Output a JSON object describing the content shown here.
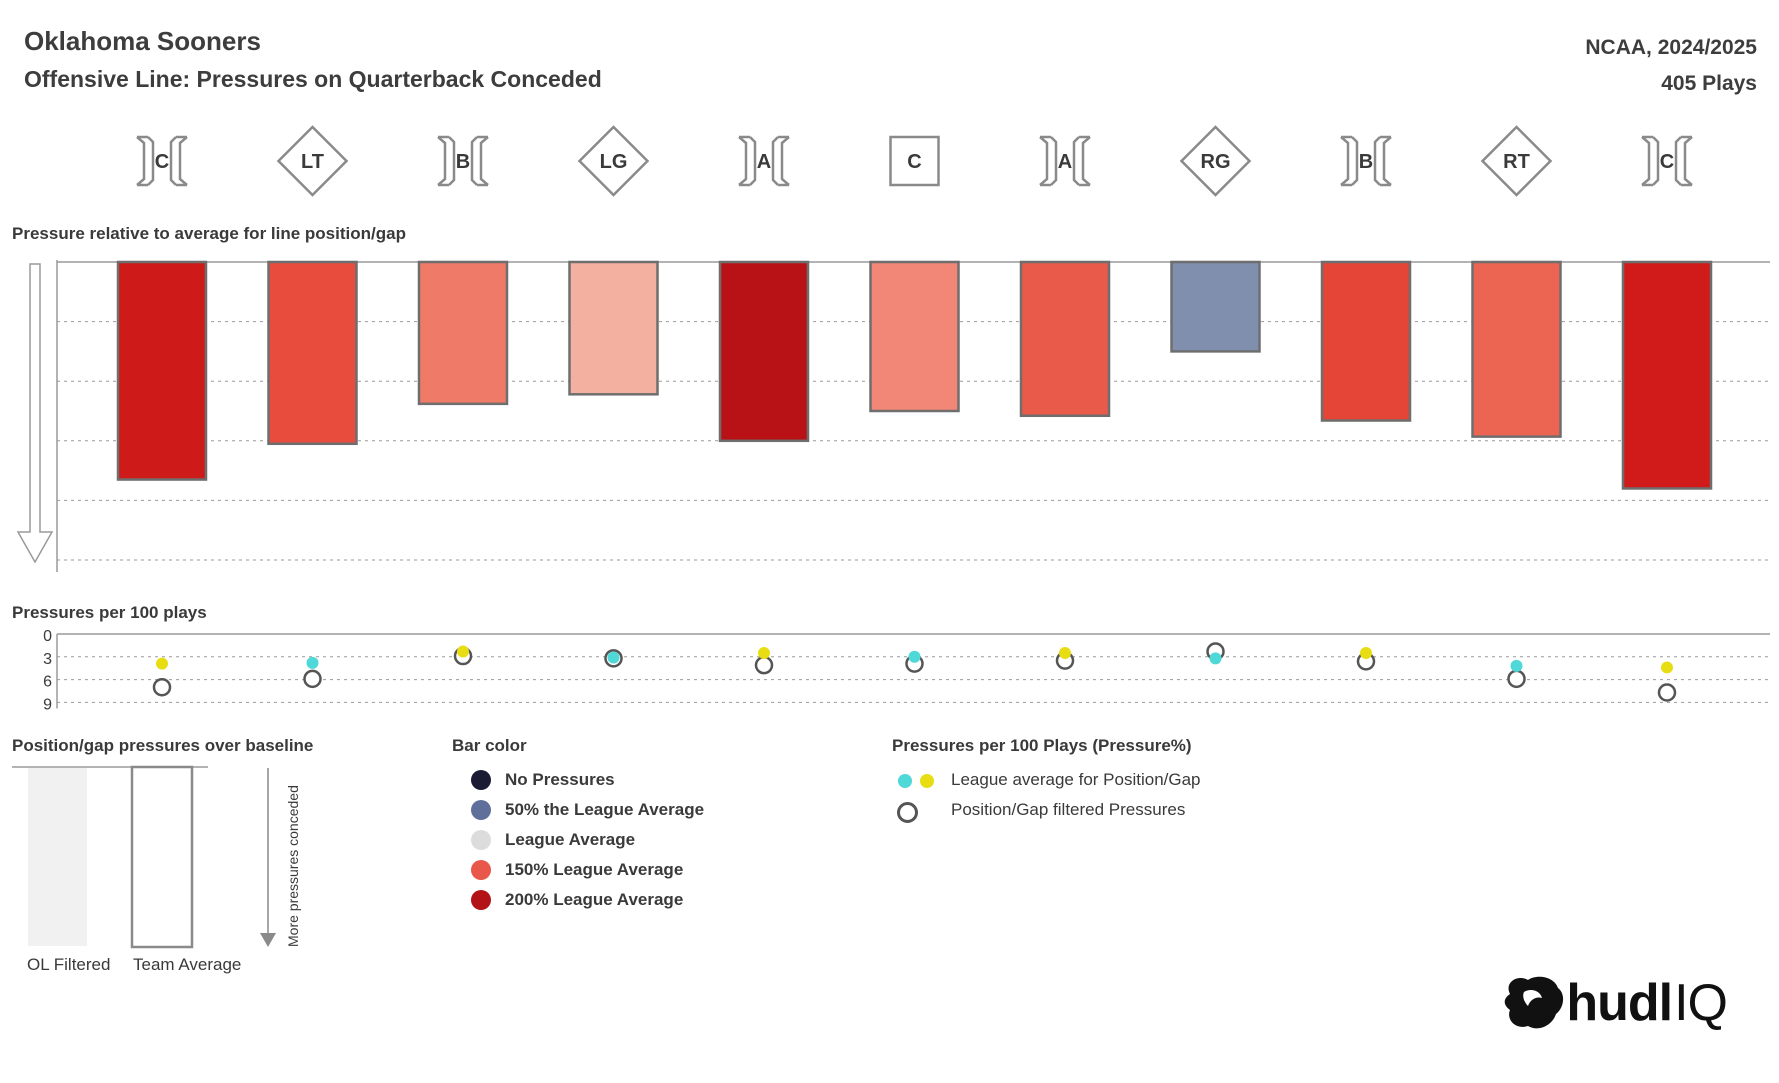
{
  "header": {
    "title": "Oklahoma Sooners",
    "subtitle": "Offensive Line: Pressures on Quarterback Conceded",
    "league_season": "NCAA, 2024/2025",
    "plays": "405 Plays"
  },
  "sections": {
    "bars_label": "Pressure relative to average for line position/gap",
    "dots_label": "Pressures per 100 plays",
    "baseline_label": "Position/gap pressures over baseline",
    "bar_color_label": "Bar color",
    "pressure_legend_label": "Pressures per 100 Plays (Pressure%)"
  },
  "baseline_legend": {
    "ol_filtered": "OL Filtered",
    "team_average": "Team Average",
    "arrow_label": "More pressures conceded"
  },
  "bar_color_legend": [
    {
      "label": "No Pressures",
      "color": "#1b1b33"
    },
    {
      "label": "50% the League Average",
      "color": "#5e6f99"
    },
    {
      "label": "League Average",
      "color": "#dcdcdc"
    },
    {
      "label": "150% League Average",
      "color": "#e8574a"
    },
    {
      "label": "200% League Average",
      "color": "#b31217"
    }
  ],
  "pressure_legend": {
    "league_avg_label": "League average for Position/Gap",
    "filtered_label": "Position/Gap filtered Pressures",
    "teal": "#4fd8d8",
    "yellow": "#e8dd12"
  },
  "logo": {
    "text": "hudl",
    "suffix": "IQ"
  },
  "chart_data": [
    {
      "type": "bar",
      "title": "Pressure relative to average for line position/gap",
      "categories": [
        "C",
        "LT",
        "B",
        "LG",
        "A",
        "C",
        "A",
        "RG",
        "B",
        "RT",
        "C"
      ],
      "category_kinds": [
        "gap",
        "player",
        "gap",
        "player",
        "gap",
        "center",
        "gap",
        "player",
        "gap",
        "player",
        "gap"
      ],
      "values": [
        3.65,
        3.05,
        2.38,
        2.22,
        3.0,
        2.5,
        2.58,
        1.5,
        2.66,
        2.93,
        3.8
      ],
      "ylim": [
        0,
        5
      ],
      "y_direction": "down",
      "bar_colors": [
        "#cf1a1a",
        "#e84c3d",
        "#f07a68",
        "#f3b0a0",
        "#b81216",
        "#f28677",
        "#ea5a4a",
        "#7f8fad",
        "#e54536",
        "#ec6452",
        "#d11b1b"
      ]
    },
    {
      "type": "scatter",
      "title": "Pressures per 100 plays",
      "categories": [
        "C",
        "LT",
        "B",
        "LG",
        "A",
        "C",
        "A",
        "RG",
        "B",
        "RT",
        "C"
      ],
      "y_ticks": [
        "0",
        "3",
        "6",
        "9"
      ],
      "ylim": [
        0,
        9
      ],
      "series": [
        {
          "name": "League average for Position/Gap",
          "values": [
            3.9,
            3.8,
            2.3,
            3.1,
            2.5,
            3.0,
            2.5,
            3.2,
            2.5,
            4.2,
            4.4
          ],
          "colors": [
            "#e8dd12",
            "#4fd8d8",
            "#e8dd12",
            "#4fd8d8",
            "#e8dd12",
            "#4fd8d8",
            "#e8dd12",
            "#4fd8d8",
            "#e8dd12",
            "#4fd8d8",
            "#e8dd12"
          ]
        },
        {
          "name": "Position/Gap filtered Pressures",
          "values": [
            7.0,
            5.9,
            2.9,
            3.2,
            4.1,
            3.9,
            3.5,
            2.3,
            3.6,
            5.9,
            7.7
          ]
        }
      ]
    }
  ]
}
